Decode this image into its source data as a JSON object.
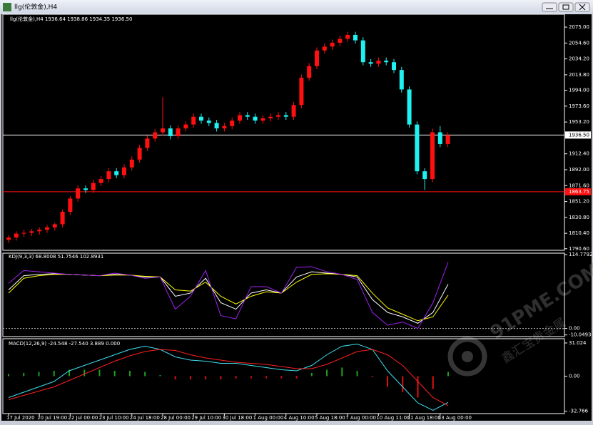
{
  "window_title": "llg(伦敦金),H4",
  "watermark": {
    "brand": "91PME.COM",
    "subtitle": "鑫汇宝贵金属"
  },
  "chart_data": [
    {
      "type": "candlestick",
      "title": "llg(伦敦金),H4  1936.64 1938.86 1934.35 1936.50",
      "up_color": "#ff1010",
      "down_color": "#20f0f0",
      "open": [
        1802,
        1805,
        1810,
        1811,
        1813,
        1815,
        1818,
        1822,
        1838,
        1855,
        1868,
        1866,
        1875,
        1880,
        1890,
        1885,
        1895,
        1905,
        1920,
        1932,
        1940,
        1945,
        1935,
        1945,
        1950,
        1960,
        1955,
        1952,
        1945,
        1948,
        1955,
        1962,
        1960,
        1955,
        1958,
        1960,
        1962,
        1960,
        1975,
        2010,
        2025,
        2045,
        2050,
        2055,
        2060,
        2065,
        2058,
        2030,
        2028,
        2032,
        2030,
        2020,
        1995,
        1950,
        1890,
        1880,
        1940,
        1925
      ],
      "high": [
        1808,
        1813,
        1815,
        1816,
        1818,
        1821,
        1824,
        1841,
        1858,
        1872,
        1872,
        1879,
        1884,
        1894,
        1894,
        1899,
        1909,
        1924,
        1936,
        1944,
        1985,
        1949,
        1949,
        1954,
        1964,
        1964,
        1959,
        1956,
        1952,
        1959,
        1966,
        1966,
        1964,
        1962,
        1964,
        1966,
        1966,
        1979,
        2014,
        2029,
        2049,
        2054,
        2059,
        2064,
        2069,
        2069,
        2062,
        2034,
        2036,
        2036,
        2034,
        2024,
        1999,
        1954,
        1894,
        1945,
        1948,
        1940
      ],
      "low": [
        1798,
        1801,
        1806,
        1807,
        1809,
        1811,
        1814,
        1818,
        1834,
        1851,
        1862,
        1862,
        1871,
        1876,
        1881,
        1881,
        1891,
        1901,
        1916,
        1928,
        1936,
        1931,
        1931,
        1941,
        1946,
        1951,
        1948,
        1941,
        1941,
        1944,
        1951,
        1956,
        1951,
        1951,
        1954,
        1956,
        1956,
        1956,
        1971,
        2006,
        2021,
        2041,
        2046,
        2051,
        2056,
        2054,
        2026,
        2024,
        2024,
        2026,
        2016,
        1991,
        1946,
        1886,
        1866,
        1876,
        1921,
        1921
      ],
      "close": [
        1805,
        1810,
        1811,
        1813,
        1815,
        1818,
        1822,
        1838,
        1855,
        1868,
        1866,
        1875,
        1880,
        1890,
        1885,
        1895,
        1905,
        1920,
        1932,
        1940,
        1945,
        1935,
        1945,
        1950,
        1960,
        1955,
        1952,
        1945,
        1948,
        1955,
        1962,
        1960,
        1955,
        1958,
        1960,
        1962,
        1960,
        1975,
        2010,
        2025,
        2045,
        2050,
        2055,
        2060,
        2065,
        2058,
        2030,
        2028,
        2032,
        2030,
        2020,
        1995,
        1950,
        1890,
        1880,
        1940,
        1925,
        1936.5
      ],
      "ylim": [
        1789.5,
        2091.5
      ],
      "yticks": [
        {
          "value": 2075,
          "label": "2075.00"
        },
        {
          "value": 2054.6,
          "label": "2054.60"
        },
        {
          "value": 2034.2,
          "label": "2034.20"
        },
        {
          "value": 2013.8,
          "label": "2013.80"
        },
        {
          "value": 1994,
          "label": "1994.00"
        },
        {
          "value": 1973.6,
          "label": "1973.60"
        },
        {
          "value": 1953.2,
          "label": "1953.20"
        },
        {
          "value": 1912.4,
          "label": "1912.40"
        },
        {
          "value": 1892,
          "label": "1892.00"
        },
        {
          "value": 1871.6,
          "label": "1871.60"
        },
        {
          "value": 1851.2,
          "label": "1851.20"
        },
        {
          "value": 1830.8,
          "label": "1830.80"
        },
        {
          "value": 1810.4,
          "label": "1810.40"
        },
        {
          "value": 1790.6,
          "label": "1790.60"
        }
      ],
      "price_lines": [
        {
          "value": 1936.5,
          "label": "1936.50",
          "color": "#ffffff"
        },
        {
          "value": 1863.75,
          "label": "1863.75",
          "color": "#ff1010"
        }
      ],
      "x_labels": [
        "17 Jul 2020",
        "20 Jul 19:00",
        "22 Jul 00:00",
        "23 Jul 10:00",
        "24 Jul 18:00",
        "28 Jul 00:00",
        "29 Jul 10:00",
        "30 Jul 18:00",
        "1 Aug 00:00",
        "4 Aug 10:00",
        "5 Aug 18:00",
        "7 Aug 00:00",
        "10 Aug 11:00",
        "11 Aug 18:00",
        "13 Aug 00:00"
      ]
    },
    {
      "type": "line",
      "title": "KDJ(9,3,3) 68.8008 51.7546 102.8931",
      "series": [
        {
          "color": "#ffffff",
          "values": [
            60,
            82,
            84,
            85,
            84,
            83,
            82,
            84,
            83,
            80,
            80,
            50,
            55,
            78,
            40,
            30,
            55,
            60,
            55,
            80,
            88,
            86,
            84,
            80,
            45,
            25,
            18,
            8,
            25,
            68.8008
          ]
        },
        {
          "color": "#ffff00",
          "values": [
            55,
            78,
            82,
            84,
            84,
            83,
            82,
            83,
            83,
            81,
            80,
            60,
            58,
            72,
            50,
            38,
            50,
            57,
            55,
            72,
            84,
            85,
            84,
            82,
            55,
            32,
            22,
            12,
            18,
            51.7546
          ]
        },
        {
          "color": "#a020f0",
          "values": [
            70,
            90,
            88,
            86,
            84,
            83,
            82,
            86,
            83,
            78,
            80,
            30,
            50,
            90,
            20,
            15,
            65,
            65,
            55,
            95,
            96,
            88,
            84,
            76,
            25,
            5,
            10,
            0,
            40,
            102.8931
          ]
        }
      ],
      "ylim": [
        -11.5,
        117
      ],
      "yticks": [
        114.7792,
        {
          "value": 0,
          "label": "0.00"
        },
        -10.0493
      ]
    },
    {
      "type": "macd",
      "title": "MACD(12,26,9) -24.548 -27.540 3.889 0.000",
      "series": [
        {
          "color": "#40e0f0",
          "values": [
            -20,
            -15,
            -10,
            -5,
            5,
            10,
            15,
            20,
            25,
            28,
            25,
            18,
            15,
            14,
            12,
            12,
            10,
            8,
            6,
            5,
            10,
            20,
            28,
            30,
            25,
            5,
            -10,
            -25,
            -32,
            -24.548
          ]
        },
        {
          "color": "#ff2020",
          "values": [
            -22,
            -18,
            -14,
            -10,
            -4,
            2,
            8,
            14,
            19,
            23,
            25,
            24,
            20,
            17,
            15,
            13,
            12,
            11,
            9,
            7,
            7,
            11,
            17,
            23,
            25,
            20,
            10,
            -5,
            -20,
            -27.54
          ]
        }
      ],
      "histogram": {
        "up_color": "#20a020",
        "down_color": "#e01010",
        "values": [
          2,
          3,
          4,
          5,
          6,
          6,
          6,
          5,
          5,
          4,
          1,
          -3,
          -3,
          -3,
          -3,
          -2,
          -2,
          -2,
          -2,
          -2,
          3,
          6,
          8,
          5,
          -1,
          -10,
          -15,
          -20,
          -12,
          3.889
        ]
      },
      "ylim": [
        -35,
        35
      ],
      "yticks": [
        31.024,
        {
          "value": 0,
          "label": "0.00"
        },
        -32.766
      ]
    }
  ]
}
